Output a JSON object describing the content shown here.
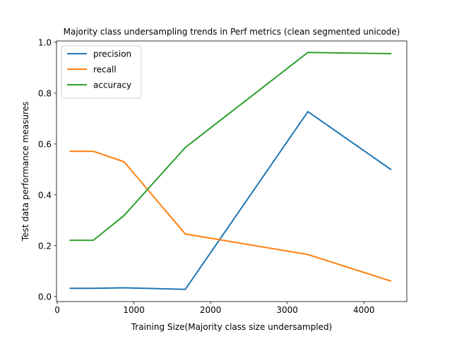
{
  "chart_data": {
    "type": "line",
    "title": "Majority class undersampling trends in Perf metrics (clean segmented unicode)",
    "xlabel": "Training Size(Majority class size undersampled)",
    "ylabel": "Test data performance measures",
    "x": [
      170,
      470,
      870,
      1670,
      3270,
      4350
    ],
    "xlim": [
      -10,
      4560
    ],
    "ylim": [
      -0.02,
      1.005
    ],
    "xticks": [
      0,
      1000,
      2000,
      3000,
      4000
    ],
    "xtick_labels": [
      "0",
      "1000",
      "2000",
      "3000",
      "4000"
    ],
    "yticks": [
      0.0,
      0.2,
      0.4,
      0.6,
      0.8,
      1.0
    ],
    "ytick_labels": [
      "0.0",
      "0.2",
      "0.4",
      "0.6",
      "0.8",
      "1.0"
    ],
    "grid": false,
    "legend_position": "top-left",
    "series": [
      {
        "name": "precision",
        "color": "#1f77b4",
        "values": [
          0.032,
          0.032,
          0.034,
          0.028,
          0.727,
          0.5
        ]
      },
      {
        "name": "recall",
        "color": "#ff7f0e",
        "values": [
          0.571,
          0.571,
          0.53,
          0.246,
          0.165,
          0.061
        ]
      },
      {
        "name": "accuracy",
        "color": "#2ca02c",
        "values": [
          0.221,
          0.221,
          0.318,
          0.586,
          0.96,
          0.955
        ]
      }
    ]
  }
}
